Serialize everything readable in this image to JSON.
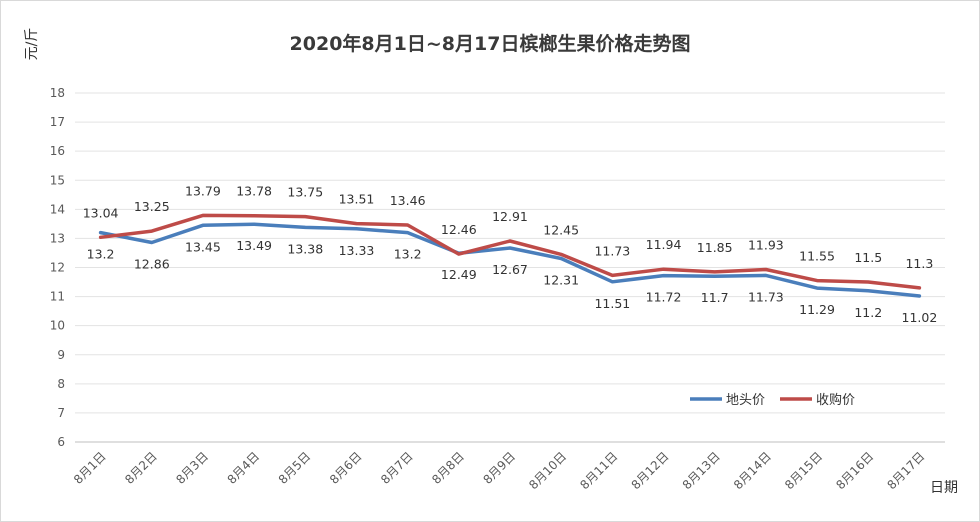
{
  "chart_data": {
    "type": "line",
    "title": "2020年8月1日~8月17日槟榔生果价格走势图",
    "ylabel": "元/斤",
    "xlabel": "日期",
    "ylim": [
      6,
      18
    ],
    "yticks": [
      6,
      7,
      8,
      9,
      10,
      11,
      12,
      13,
      14,
      15,
      16,
      17,
      18
    ],
    "grid": true,
    "legend_position": "bottom-right",
    "categories": [
      "8月1日",
      "8月2日",
      "8月3日",
      "8月4日",
      "8月5日",
      "8月6日",
      "8月7日",
      "8月8日",
      "8月9日",
      "8月10日",
      "8月11日",
      "8月12日",
      "8月13日",
      "8月14日",
      "8月15日",
      "8月16日",
      "8月17日"
    ],
    "series": [
      {
        "name": "地头价",
        "color": "#4a7ebb",
        "label_position": "below",
        "values": [
          13.2,
          12.86,
          13.45,
          13.49,
          13.38,
          13.33,
          13.2,
          12.49,
          12.67,
          12.31,
          11.51,
          11.72,
          11.7,
          11.73,
          11.29,
          11.2,
          11.02
        ]
      },
      {
        "name": "收购价",
        "color": "#be4b48",
        "label_position": "above",
        "values": [
          13.04,
          13.25,
          13.79,
          13.78,
          13.75,
          13.51,
          13.46,
          12.46,
          12.91,
          12.45,
          11.73,
          11.94,
          11.85,
          11.93,
          11.55,
          11.5,
          11.3
        ]
      }
    ]
  }
}
